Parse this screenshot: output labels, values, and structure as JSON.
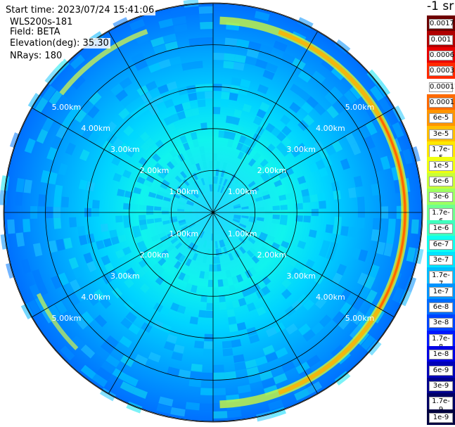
{
  "info": {
    "start_time": "Start time: 2023/07/24 15:41:06",
    "instrument": "WLS200s-181",
    "field": "Field: BETA",
    "elevation": "Elevation(deg): 35.30",
    "nrays": "NRays: 180"
  },
  "colorbar": {
    "unit_label": "-1 sr",
    "labels": [
      "0.0017",
      "0.001",
      "0.0006",
      "0.0003",
      "0.00017",
      "0.0001",
      "6e-5",
      "3e-5",
      "1.7e-5",
      "1e-5",
      "6e-6",
      "3e-6",
      "1.7e-6",
      "1e-6",
      "6e-7",
      "3e-7",
      "1.7e-7",
      "1e-7",
      "6e-8",
      "3e-8",
      "1.7e-8",
      "1e-8",
      "6e-9",
      "3e-9",
      "1.7e-9",
      "1e-9"
    ],
    "colors": [
      "#6e0000",
      "#b00000",
      "#e80000",
      "#ff2a00",
      "#ffffff",
      "#ff6a00",
      "#ff9500",
      "#ffbf00",
      "#ffe800",
      "#f0ff10",
      "#c8ff38",
      "#9cff62",
      "#70ff8e",
      "#40ffbe",
      "#10ffee",
      "#00e4ff",
      "#00bcff",
      "#0094ff",
      "#006cff",
      "#0044ff",
      "#0018ff",
      "#0000e4",
      "#0000b8",
      "#00008c",
      "#000064",
      "#000040"
    ]
  },
  "chart_data": {
    "type": "heatmap",
    "projection": "polar (PPI scan)",
    "range_rings_km": [
      1,
      2,
      3,
      4,
      5
    ],
    "ring_labels": [
      "1.00km",
      "2.00km",
      "3.00km",
      "4.00km",
      "5.00km"
    ],
    "max_range_km": 5.0,
    "spoke_interval_deg": 30,
    "nrays": 180,
    "color_scale": "log",
    "value_range": [
      1e-09,
      0.0017
    ],
    "field": "BETA"
  }
}
